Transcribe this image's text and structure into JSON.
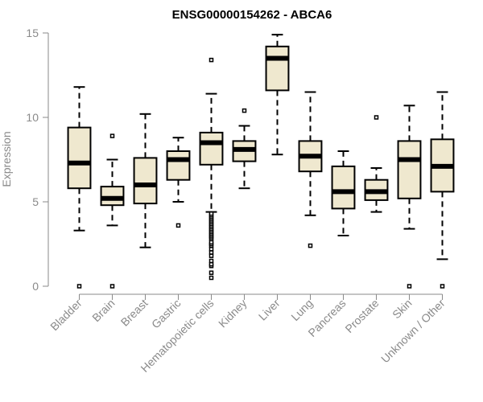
{
  "chart_data": {
    "type": "box",
    "title": "ENSG00000154262 - ABCA6",
    "ylabel": "Expression",
    "xlabel": "",
    "ylim": [
      0,
      15
    ],
    "yticks": [
      0,
      5,
      10,
      15
    ],
    "grid": false,
    "colors": {
      "box_fill": "#efe8cf",
      "box_stroke": "#000000",
      "axis": "#8a8a8a"
    },
    "categories": [
      "Bladder",
      "Brain",
      "Breast",
      "Gastric",
      "Hematopoietic cells",
      "Kidney",
      "Liver",
      "Lung",
      "Pancreas",
      "Prostate",
      "Skin",
      "Unknown / Other"
    ],
    "boxes": [
      {
        "category": "Bladder",
        "whisker_low": 3.3,
        "q1": 5.8,
        "median": 7.3,
        "q3": 9.4,
        "whisker_high": 11.8,
        "outliers": [
          0.0
        ]
      },
      {
        "category": "Brain",
        "whisker_low": 3.6,
        "q1": 4.8,
        "median": 5.2,
        "q3": 5.9,
        "whisker_high": 7.5,
        "outliers": [
          0.0,
          8.9
        ]
      },
      {
        "category": "Breast",
        "whisker_low": 2.3,
        "q1": 4.9,
        "median": 6.0,
        "q3": 7.6,
        "whisker_high": 10.2,
        "outliers": []
      },
      {
        "category": "Gastric",
        "whisker_low": 5.0,
        "q1": 6.3,
        "median": 7.5,
        "q3": 8.0,
        "whisker_high": 8.8,
        "outliers": [
          3.6
        ]
      },
      {
        "category": "Hematopoietic cells",
        "whisker_low": 4.4,
        "q1": 7.2,
        "median": 8.5,
        "q3": 9.1,
        "whisker_high": 11.4,
        "outliers": [
          13.4,
          0.5,
          0.8,
          1.2,
          1.3,
          1.5,
          1.8,
          2.0,
          2.2,
          2.4,
          2.5,
          2.6,
          2.8,
          2.9,
          3.0,
          3.1,
          3.2,
          3.3,
          3.4,
          3.5,
          3.6,
          3.7,
          3.8,
          3.9,
          4.0,
          4.1,
          4.2,
          4.3
        ]
      },
      {
        "category": "Kidney",
        "whisker_low": 5.8,
        "q1": 7.4,
        "median": 8.1,
        "q3": 8.6,
        "whisker_high": 9.5,
        "outliers": [
          10.4
        ]
      },
      {
        "category": "Liver",
        "whisker_low": 7.8,
        "q1": 11.6,
        "median": 13.5,
        "q3": 14.2,
        "whisker_high": 14.9,
        "outliers": []
      },
      {
        "category": "Lung",
        "whisker_low": 4.2,
        "q1": 6.8,
        "median": 7.7,
        "q3": 8.6,
        "whisker_high": 11.5,
        "outliers": [
          2.4
        ]
      },
      {
        "category": "Pancreas",
        "whisker_low": 3.0,
        "q1": 4.6,
        "median": 5.6,
        "q3": 7.1,
        "whisker_high": 8.0,
        "outliers": []
      },
      {
        "category": "Prostate",
        "whisker_low": 4.4,
        "q1": 5.1,
        "median": 5.6,
        "q3": 6.3,
        "whisker_high": 7.0,
        "outliers": [
          10.0
        ]
      },
      {
        "category": "Skin",
        "whisker_low": 3.4,
        "q1": 5.2,
        "median": 7.5,
        "q3": 8.6,
        "whisker_high": 10.7,
        "outliers": [
          0.0
        ]
      },
      {
        "category": "Unknown / Other",
        "whisker_low": 1.6,
        "q1": 5.6,
        "median": 7.1,
        "q3": 8.7,
        "whisker_high": 11.5,
        "outliers": [
          0.0
        ]
      }
    ]
  }
}
